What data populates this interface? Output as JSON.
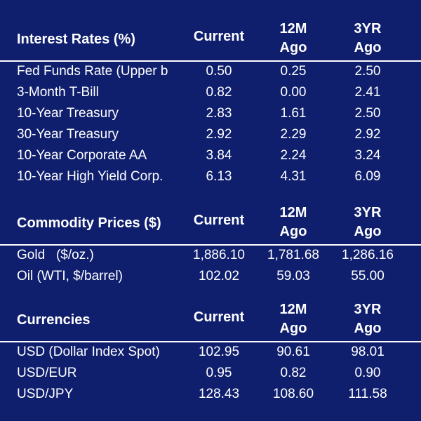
{
  "sections": [
    {
      "title": "Interest Rates (%)",
      "col_current": "Current",
      "col_12m_line1": "12M",
      "col_12m_line2": "Ago",
      "col_3yr_line1": "3YR",
      "col_3yr_line2": "Ago",
      "rows": [
        {
          "label": "Fed Funds Rate (Upper b",
          "current": "0.50",
          "m12": "0.25",
          "y3": "2.50"
        },
        {
          "label": "3-Month T-Bill",
          "current": "0.82",
          "m12": "0.00",
          "y3": "2.41"
        },
        {
          "label": "10-Year Treasury",
          "current": "2.83",
          "m12": "1.61",
          "y3": "2.50"
        },
        {
          "label": "30-Year Treasury",
          "current": "2.92",
          "m12": "2.29",
          "y3": "2.92"
        },
        {
          "label": "10-Year Corporate AA",
          "current": "3.84",
          "m12": "2.24",
          "y3": "3.24"
        },
        {
          "label": "10-Year High Yield Corp.",
          "current": "6.13",
          "m12": "4.31",
          "y3": "6.09"
        }
      ]
    },
    {
      "title": "Commodity Prices ($)",
      "col_current": "Current",
      "col_12m_line1": "12M",
      "col_12m_line2": "Ago",
      "col_3yr_line1": "3YR",
      "col_3yr_line2": "Ago",
      "rows": [
        {
          "label": "Gold   ($/oz.)",
          "current": "1,886.10",
          "m12": "1,781.68",
          "y3": "1,286.16"
        },
        {
          "label": "Oil (WTI, $/barrel)",
          "current": "102.02",
          "m12": "59.03",
          "y3": "55.00"
        }
      ]
    },
    {
      "title": "Currencies",
      "col_current": "Current",
      "col_12m_line1": "12M",
      "col_12m_line2": "Ago",
      "col_3yr_line1": "3YR",
      "col_3yr_line2": "Ago",
      "rows": [
        {
          "label": "USD (Dollar Index Spot)",
          "current": "102.95",
          "m12": "90.61",
          "y3": "98.01"
        },
        {
          "label": "USD/EUR",
          "current": "0.95",
          "m12": "0.82",
          "y3": "0.90"
        },
        {
          "label": "USD/JPY",
          "current": "128.43",
          "m12": "108.60",
          "y3": "111.58"
        }
      ]
    }
  ],
  "colors": {
    "background": "#0f1f6e",
    "text": "#ffffff",
    "rule": "#ffffff"
  }
}
